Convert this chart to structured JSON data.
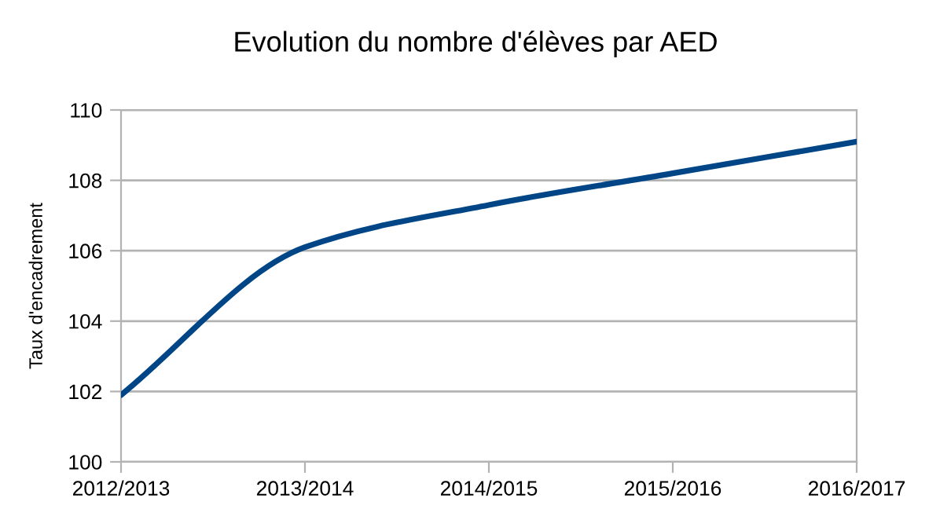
{
  "chart_data": {
    "type": "line",
    "title": "Evolution du nombre d'élèves par AED",
    "ylabel": "Taux d'encadrement",
    "categories": [
      "2012/2013",
      "2013/2014",
      "2014/2015",
      "2015/2016",
      "2016/2017"
    ],
    "series": [
      {
        "color": "#004586",
        "values": [
          101.9,
          106.1,
          107.3,
          108.2,
          109.1
        ]
      }
    ],
    "ylim": [
      100,
      110
    ],
    "yticks": [
      100,
      102,
      104,
      106,
      108,
      110
    ],
    "grid": "y",
    "marker": "none",
    "line_style": "solid"
  }
}
